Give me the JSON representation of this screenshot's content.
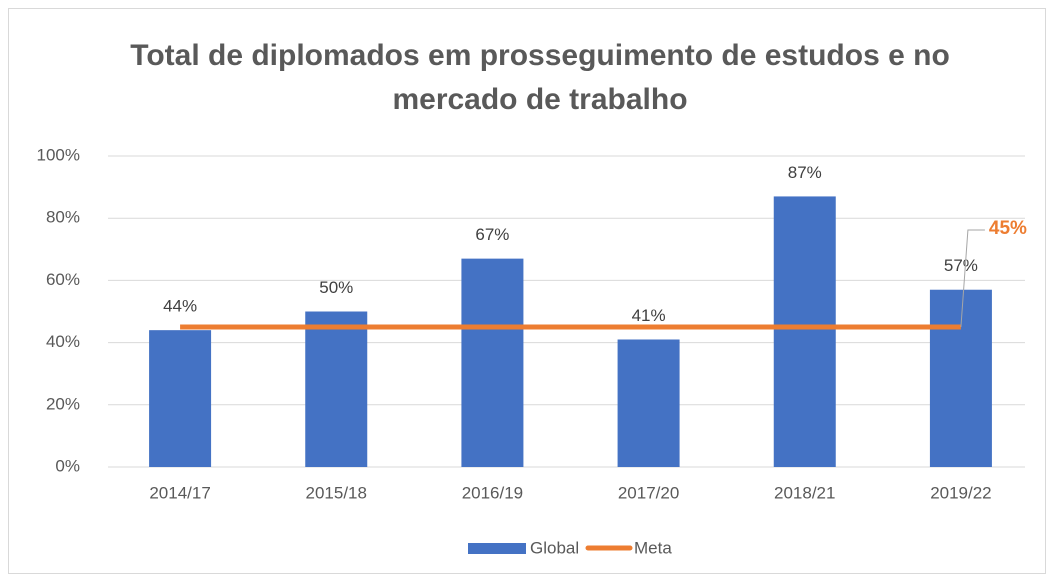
{
  "chart_data": {
    "type": "bar",
    "title": "Total de diplomados em prosseguimento de estudos e no mercado de trabalho",
    "categories": [
      "2014/17",
      "2015/18",
      "2016/19",
      "2017/20",
      "2018/21",
      "2019/22"
    ],
    "series": [
      {
        "name": "Global",
        "type": "bar",
        "color": "#4472c4",
        "values": [
          44,
          50,
          67,
          41,
          87,
          57
        ],
        "value_labels": [
          "44%",
          "50%",
          "67%",
          "41%",
          "87%",
          "57%"
        ]
      },
      {
        "name": "Meta",
        "type": "line",
        "color": "#ed7d31",
        "values": [
          45,
          45,
          45,
          45,
          45,
          45
        ],
        "value_labels": [
          null,
          null,
          null,
          null,
          null,
          "45%"
        ]
      }
    ],
    "ylim": [
      0,
      100
    ],
    "yticks": [
      {
        "value": 0,
        "label": "0%"
      },
      {
        "value": 20,
        "label": "20%"
      },
      {
        "value": 40,
        "label": "40%"
      },
      {
        "value": 60,
        "label": "60%"
      },
      {
        "value": 80,
        "label": "80%"
      },
      {
        "value": 100,
        "label": "100%"
      }
    ],
    "grid": true,
    "legend": "bottom"
  }
}
